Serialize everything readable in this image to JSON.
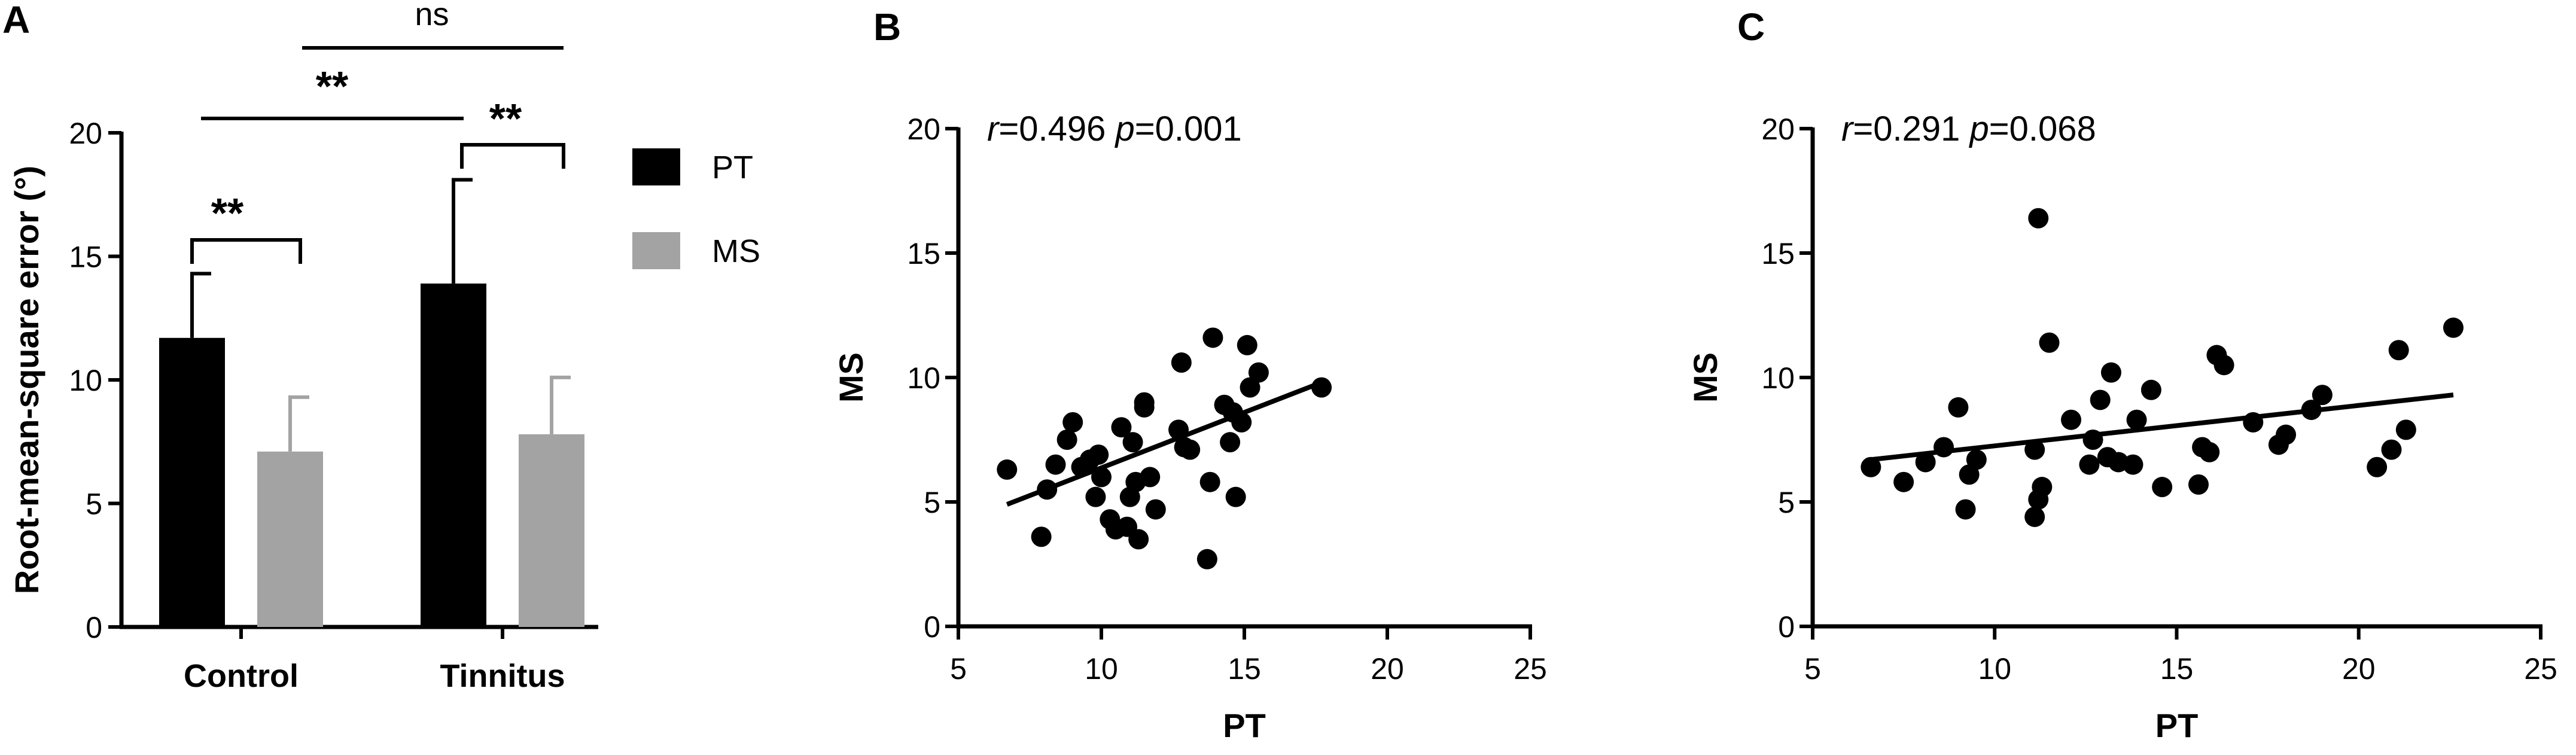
{
  "panels": {
    "a": "A",
    "b": "B",
    "c": "C"
  },
  "chart_data": [
    {
      "type": "bar",
      "panel": "A",
      "categories": [
        "Control",
        "Tinnitus"
      ],
      "series": [
        {
          "name": "PT",
          "values": [
            11.7,
            13.9
          ],
          "errors": [
            2.6,
            4.2
          ],
          "color": "#000000"
        },
        {
          "name": "MS",
          "values": [
            7.1,
            7.8
          ],
          "errors": [
            2.2,
            2.3
          ],
          "color": "#a3a3a3"
        }
      ],
      "ylabel": "Root-mean-square error (°)",
      "ylim": [
        0,
        20
      ],
      "yticks": [
        "0",
        "5",
        "10",
        "15",
        "20"
      ],
      "legend_position": "right",
      "annotations": {
        "control_pt_vs_ms": "**",
        "tinnitus_pt_vs_ms": "**",
        "pt_control_vs_tinnitus": "**",
        "ms_control_vs_tinnitus": "ns"
      }
    },
    {
      "type": "scatter",
      "panel": "B",
      "xlabel": "PT",
      "ylabel": "MS",
      "xlim": [
        5,
        25
      ],
      "ylim": [
        0,
        20
      ],
      "xticks": [
        "5",
        "10",
        "15",
        "20",
        "25"
      ],
      "yticks": [
        "0",
        "5",
        "10",
        "15",
        "20"
      ],
      "stats": {
        "r_label": "r",
        "r_value": "=0.496 ",
        "p_label": "p",
        "p_value": "=0.001"
      },
      "fit_line": [
        [
          6.7,
          4.9
        ],
        [
          17.7,
          9.8
        ]
      ],
      "points": [
        [
          6.7,
          6.3
        ],
        [
          7.9,
          3.6
        ],
        [
          8.1,
          5.5
        ],
        [
          8.4,
          6.5
        ],
        [
          8.8,
          7.5
        ],
        [
          9.0,
          8.2
        ],
        [
          9.3,
          6.4
        ],
        [
          9.6,
          6.7
        ],
        [
          9.8,
          5.2
        ],
        [
          9.9,
          6.9
        ],
        [
          10.0,
          6.0
        ],
        [
          10.3,
          4.3
        ],
        [
          10.5,
          3.9
        ],
        [
          10.7,
          8.0
        ],
        [
          10.9,
          4.0
        ],
        [
          11.0,
          5.2
        ],
        [
          11.1,
          7.4
        ],
        [
          11.2,
          5.8
        ],
        [
          11.3,
          3.5
        ],
        [
          11.5,
          8.8
        ],
        [
          11.5,
          9.0
        ],
        [
          11.7,
          6.0
        ],
        [
          11.9,
          4.7
        ],
        [
          12.7,
          7.9
        ],
        [
          12.8,
          10.6
        ],
        [
          12.9,
          7.2
        ],
        [
          13.1,
          7.1
        ],
        [
          13.7,
          2.7
        ],
        [
          13.8,
          5.8
        ],
        [
          13.9,
          11.6
        ],
        [
          14.3,
          8.9
        ],
        [
          14.5,
          7.4
        ],
        [
          14.6,
          8.6
        ],
        [
          14.7,
          5.2
        ],
        [
          14.9,
          8.2
        ],
        [
          15.1,
          11.3
        ],
        [
          15.2,
          9.6
        ],
        [
          15.5,
          10.2
        ],
        [
          17.7,
          9.6
        ]
      ]
    },
    {
      "type": "scatter",
      "panel": "C",
      "xlabel": "PT",
      "ylabel": "MS",
      "xlim": [
        5,
        25
      ],
      "ylim": [
        0,
        20
      ],
      "xticks": [
        "5",
        "10",
        "15",
        "20",
        "25"
      ],
      "yticks": [
        "0",
        "5",
        "10",
        "15",
        "20"
      ],
      "stats": {
        "r_label": "r",
        "r_value": "=0.291 ",
        "p_label": "p",
        "p_value": "=0.068"
      },
      "fit_line": [
        [
          6.6,
          6.7
        ],
        [
          22.6,
          9.3
        ]
      ],
      "points": [
        [
          6.6,
          6.4
        ],
        [
          7.5,
          5.8
        ],
        [
          8.1,
          6.6
        ],
        [
          8.6,
          7.2
        ],
        [
          9.0,
          8.8
        ],
        [
          9.2,
          4.7
        ],
        [
          9.3,
          6.1
        ],
        [
          9.5,
          6.7
        ],
        [
          11.1,
          7.1
        ],
        [
          11.1,
          4.4
        ],
        [
          11.2,
          16.4
        ],
        [
          11.2,
          5.1
        ],
        [
          11.3,
          5.6
        ],
        [
          11.5,
          11.4
        ],
        [
          12.1,
          8.3
        ],
        [
          12.6,
          6.5
        ],
        [
          12.7,
          7.5
        ],
        [
          12.9,
          9.1
        ],
        [
          13.1,
          6.8
        ],
        [
          13.2,
          10.2
        ],
        [
          13.4,
          6.6
        ],
        [
          13.8,
          6.5
        ],
        [
          13.9,
          8.3
        ],
        [
          14.3,
          9.5
        ],
        [
          14.6,
          5.6
        ],
        [
          15.6,
          5.7
        ],
        [
          15.7,
          7.2
        ],
        [
          15.9,
          7.0
        ],
        [
          16.1,
          10.9
        ],
        [
          16.3,
          10.5
        ],
        [
          17.1,
          8.2
        ],
        [
          17.8,
          7.3
        ],
        [
          18.0,
          7.7
        ],
        [
          18.7,
          8.7
        ],
        [
          19.0,
          9.3
        ],
        [
          20.5,
          6.4
        ],
        [
          20.9,
          7.1
        ],
        [
          21.1,
          11.1
        ],
        [
          21.3,
          7.9
        ],
        [
          22.6,
          12.0
        ]
      ]
    }
  ]
}
